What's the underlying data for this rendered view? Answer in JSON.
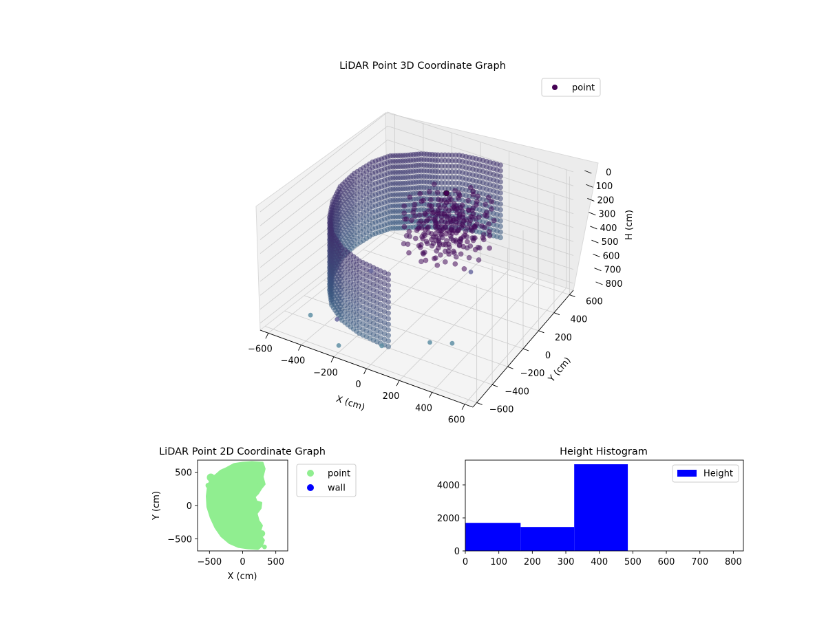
{
  "chart_data": [
    {
      "type": "scatter",
      "projection": "3d",
      "title": "LiDAR Point 3D Coordinate Graph",
      "xlabel": "X (cm)",
      "ylabel": "Y (cm)",
      "zlabel": "H (cm)",
      "xticks": [
        "−600",
        "−400",
        "−200",
        "0",
        "200",
        "400",
        "600"
      ],
      "yticks": [
        "−600",
        "−400",
        "−200",
        "0",
        "200",
        "400",
        "600"
      ],
      "zticks": [
        "0",
        "100",
        "200",
        "300",
        "400",
        "500",
        "600",
        "700",
        "800"
      ],
      "xlim": [
        -650,
        650
      ],
      "ylim": [
        -650,
        650
      ],
      "zlim": [
        0,
        850
      ],
      "z_inverted": true,
      "grid": true,
      "colormap": "viridis (dark purple to teal)",
      "legend": {
        "entries": [
          "point"
        ],
        "position": "upper-right",
        "color": "#440154"
      },
      "series": [
        {
          "name": "point",
          "description_points_outliers": [
            [
              -500,
              -380,
              830
            ],
            [
              -310,
              -420,
              760
            ],
            [
              -220,
              -560,
              830
            ],
            [
              -20,
              -440,
              820
            ],
            [
              180,
              -250,
              830
            ],
            [
              290,
              -190,
              830
            ],
            [
              130,
              320,
              690
            ],
            [
              -360,
              30,
              690
            ]
          ]
        }
      ]
    },
    {
      "type": "scatter",
      "title": "LiDAR Point 2D Coordinate Graph",
      "xlabel": "X (cm)",
      "ylabel": "Y (cm)",
      "xticks": [
        "−500",
        "0",
        "500"
      ],
      "yticks": [
        "−500",
        "0",
        "500"
      ],
      "xlim": [
        -680,
        680
      ],
      "ylim": [
        -680,
        680
      ],
      "legend": {
        "position": "outside-right",
        "entries": [
          {
            "label": "point",
            "color": "#90ee90"
          },
          {
            "label": "wall",
            "color": "#0000ff"
          }
        ]
      },
      "outline": [
        [
          -520,
          300
        ],
        [
          -470,
          410
        ],
        [
          -400,
          460
        ],
        [
          -330,
          520
        ],
        [
          -240,
          560
        ],
        [
          -130,
          620
        ],
        [
          0,
          640
        ],
        [
          140,
          650
        ],
        [
          300,
          640
        ],
        [
          330,
          550
        ],
        [
          300,
          430
        ],
        [
          330,
          320
        ],
        [
          280,
          260
        ],
        [
          230,
          180
        ],
        [
          180,
          130
        ],
        [
          210,
          60
        ],
        [
          280,
          40
        ],
        [
          270,
          -40
        ],
        [
          210,
          -120
        ],
        [
          240,
          -230
        ],
        [
          290,
          -300
        ],
        [
          250,
          -420
        ],
        [
          320,
          -520
        ],
        [
          290,
          -600
        ],
        [
          230,
          -650
        ],
        [
          80,
          -640
        ],
        [
          -60,
          -620
        ],
        [
          -200,
          -560
        ],
        [
          -320,
          -460
        ],
        [
          -410,
          -330
        ],
        [
          -480,
          -180
        ],
        [
          -530,
          -20
        ],
        [
          -540,
          140
        ]
      ],
      "blobs": [
        [
          -480,
          420,
          60
        ],
        [
          -520,
          300,
          40
        ],
        [
          -430,
          240,
          45
        ],
        [
          290,
          -420,
          50
        ],
        [
          250,
          300,
          40
        ],
        [
          330,
          -620,
          35
        ]
      ]
    },
    {
      "type": "bar",
      "title": "Height Histogram",
      "xlabel": "",
      "ylabel": "",
      "legend": {
        "entries": [
          "Height"
        ],
        "position": "upper-right"
      },
      "color": "#0000ff",
      "bins": [
        [
          0,
          165,
          1700
        ],
        [
          165,
          325,
          1450
        ],
        [
          325,
          485,
          5250
        ],
        [
          485,
          645,
          0
        ],
        [
          645,
          805,
          0
        ]
      ],
      "xlim": [
        0,
        830
      ],
      "ylim": [
        0,
        5500
      ],
      "xticks": [
        "0",
        "100",
        "200",
        "300",
        "400",
        "500",
        "600",
        "700",
        "800"
      ],
      "yticks": [
        "0",
        "2000",
        "4000"
      ]
    }
  ]
}
